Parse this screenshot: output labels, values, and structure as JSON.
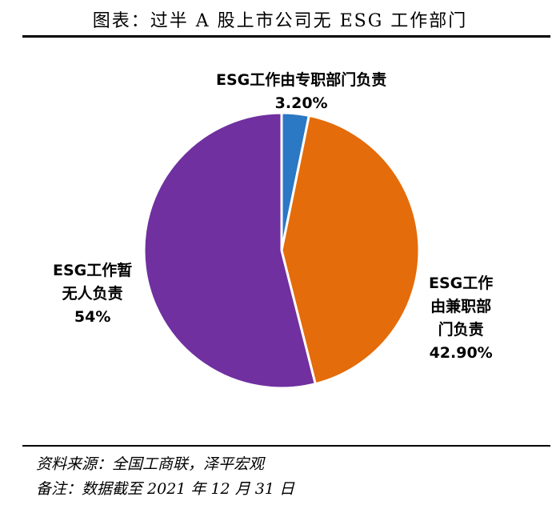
{
  "header": {
    "title": "图表：过半 A 股上市公司无 ESG 工作部门"
  },
  "chart_data": {
    "type": "pie",
    "title": "图表：过半 A 股上市公司无 ESG 工作部门",
    "slices": [
      {
        "name": "ESG工作由专职部门负责",
        "value": 3.2,
        "value_label": "3.20%",
        "color": "#2B78C4",
        "label_lines": [
          "ESG工作由专职部门负责"
        ]
      },
      {
        "name": "ESG工作由兼职部门负责",
        "value": 42.9,
        "value_label": "42.90%",
        "color": "#E46C0A",
        "label_lines": [
          "ESG工作",
          "由兼职部",
          "门负责"
        ]
      },
      {
        "name": "ESG工作暂无人负责",
        "value": 54,
        "value_label": "54%",
        "color": "#7030A0",
        "label_lines": [
          "ESG工作暂",
          "无人负责"
        ]
      }
    ]
  },
  "footer": {
    "source": "资料来源：全国工商联，泽平宏观",
    "note": "备注：数据截至 2021 年 12 月 31 日"
  }
}
